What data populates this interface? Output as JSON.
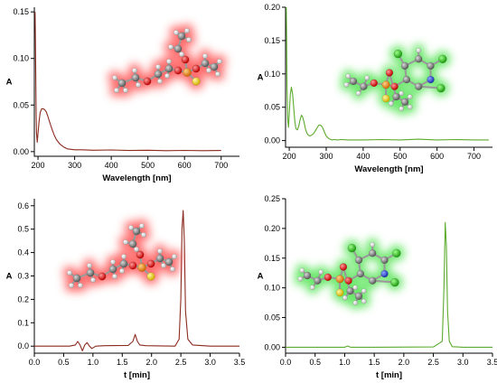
{
  "chart_data": [
    {
      "type": "line",
      "panel": "top-left",
      "xlabel": "Wavelength [nm]",
      "ylabel": "A",
      "xlim": [
        190,
        750
      ],
      "ylim": [
        -0.005,
        0.155
      ],
      "xticks": [
        200,
        300,
        400,
        500,
        600,
        700
      ],
      "yticks": [
        0.0,
        0.05,
        0.1,
        0.15
      ],
      "ytick_labels": [
        "0.00",
        "0.05",
        "0.10",
        "0.15"
      ],
      "color": "#8b2a1f",
      "glow_color": "#ff4040",
      "series": [
        {
          "x": [
            192,
            193,
            194,
            195,
            196,
            198,
            200,
            203,
            206,
            210,
            214,
            218,
            222,
            226,
            230,
            235,
            240,
            245,
            250,
            260,
            270,
            280,
            290,
            300,
            320,
            350,
            400,
            450,
            500,
            550,
            600,
            650,
            700
          ],
          "y": [
            0.15,
            0.12,
            0.08,
            0.04,
            0.02,
            0.01,
            0.02,
            0.033,
            0.042,
            0.046,
            0.046,
            0.045,
            0.043,
            0.039,
            0.034,
            0.028,
            0.022,
            0.017,
            0.013,
            0.008,
            0.005,
            0.003,
            0.0025,
            0.002,
            0.002,
            0.0015,
            0.0018,
            0.0012,
            0.0015,
            0.001,
            0.0013,
            0.001,
            0.0012
          ]
        }
      ]
    },
    {
      "type": "line",
      "panel": "top-right",
      "xlabel": "Wavelength [nm]",
      "ylabel": "A",
      "xlim": [
        190,
        750
      ],
      "ylim": [
        -0.01,
        0.2
      ],
      "xticks": [
        200,
        300,
        400,
        500,
        600,
        700
      ],
      "yticks": [
        0.0,
        0.05,
        0.1,
        0.15,
        0.2
      ],
      "ytick_labels": [
        "0.00",
        "0.05",
        "0.10",
        "0.15",
        "0.20"
      ],
      "color": "#5cab2d",
      "glow_color": "#40e040",
      "series": [
        {
          "x": [
            192,
            193,
            194,
            196,
            198,
            200,
            203,
            206,
            209,
            212,
            215,
            218,
            222,
            226,
            230,
            233,
            236,
            240,
            244,
            248,
            252,
            256,
            260,
            265,
            270,
            275,
            280,
            285,
            290,
            295,
            300,
            305,
            310,
            315,
            320,
            330,
            340,
            360,
            400,
            450,
            500,
            550,
            600,
            650,
            700,
            740
          ],
          "y": [
            0.2,
            0.15,
            0.08,
            0.03,
            0.02,
            0.04,
            0.07,
            0.08,
            0.07,
            0.05,
            0.03,
            0.018,
            0.016,
            0.022,
            0.033,
            0.038,
            0.036,
            0.028,
            0.017,
            0.011,
            0.008,
            0.007,
            0.008,
            0.01,
            0.014,
            0.019,
            0.023,
            0.023,
            0.02,
            0.013,
            0.007,
            0.004,
            0.002,
            0.001,
            0.0015,
            0.001,
            0.0015,
            0.001,
            0.001,
            0.0015,
            0.001,
            0.002,
            0.001,
            0.0015,
            0.001,
            0.001
          ]
        }
      ]
    },
    {
      "type": "line",
      "panel": "bottom-left",
      "xlabel": "t [min]",
      "ylabel": "A",
      "xlim": [
        0.0,
        3.5
      ],
      "ylim": [
        -0.03,
        0.63
      ],
      "xticks": [
        0.0,
        0.5,
        1.0,
        1.5,
        2.0,
        2.5,
        3.0,
        3.5
      ],
      "xtick_labels": [
        "0.0",
        "0.5",
        "1.0",
        "1.5",
        "2.0",
        "2.5",
        "3.0",
        "3.5"
      ],
      "yticks": [
        0.0,
        0.1,
        0.2,
        0.3,
        0.4,
        0.5,
        0.6
      ],
      "ytick_labels": [
        "0.0",
        "0.1",
        "0.2",
        "0.3",
        "0.4",
        "0.5",
        "0.6"
      ],
      "color": "#8b2a1f",
      "glow_color": "#ff4040",
      "series": [
        {
          "x": [
            0.0,
            0.6,
            0.7,
            0.74,
            0.78,
            0.82,
            0.86,
            0.9,
            0.94,
            0.98,
            1.05,
            1.2,
            1.6,
            1.68,
            1.72,
            1.76,
            1.8,
            1.9,
            2.4,
            2.47,
            2.5,
            2.52,
            2.54,
            2.56,
            2.58,
            2.62,
            2.7,
            3.0,
            3.5
          ],
          "y": [
            0.0,
            0.0,
            0.005,
            0.02,
            0.005,
            -0.02,
            0.005,
            0.015,
            0.0,
            -0.01,
            0.0,
            0.002,
            0.003,
            0.02,
            0.05,
            0.02,
            0.005,
            0.002,
            0.0,
            0.03,
            0.2,
            0.5,
            0.58,
            0.45,
            0.15,
            0.03,
            0.005,
            0.0,
            0.0
          ]
        }
      ]
    },
    {
      "type": "line",
      "panel": "bottom-right",
      "xlabel": "t [min]",
      "ylabel": "A",
      "xlim": [
        0.0,
        3.5
      ],
      "ylim": [
        -0.01,
        0.25
      ],
      "xticks": [
        0.0,
        0.5,
        1.0,
        1.5,
        2.0,
        2.5,
        3.0,
        3.5
      ],
      "xtick_labels": [
        "0.0",
        "0.5",
        "1.0",
        "1.5",
        "2.0",
        "2.5",
        "3.0",
        "3.5"
      ],
      "yticks": [
        0.0,
        0.05,
        0.1,
        0.15,
        0.2,
        0.25
      ],
      "ytick_labels": [
        "0.00",
        "0.05",
        "0.10",
        "0.15",
        "0.20",
        "0.25"
      ],
      "color": "#5cab2d",
      "glow_color": "#40e040",
      "series": [
        {
          "x": [
            0.0,
            1.0,
            1.05,
            1.1,
            1.5,
            2.5,
            2.65,
            2.68,
            2.7,
            2.72,
            2.74,
            2.77,
            2.82,
            3.0,
            3.5
          ],
          "y": [
            0.0,
            0.0,
            0.002,
            0.0,
            0.0,
            0.0005,
            0.01,
            0.1,
            0.21,
            0.17,
            0.06,
            0.01,
            0.001,
            0.0,
            0.0
          ]
        }
      ]
    }
  ]
}
